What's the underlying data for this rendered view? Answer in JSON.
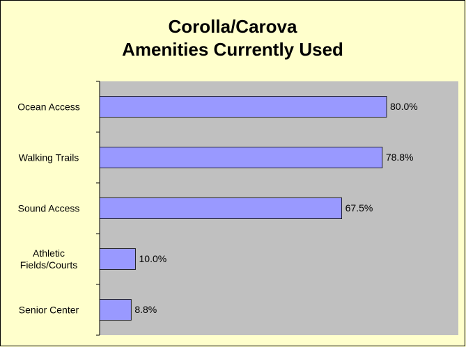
{
  "chart_data": {
    "type": "hbar",
    "title": [
      "Corolla/Carova",
      "Amenities Currently Used"
    ],
    "categories": [
      "Ocean Access",
      "Walking Trails",
      "Sound Access",
      "Athletic Fields/Courts",
      "Senior Center"
    ],
    "values": [
      80.0,
      78.8,
      67.5,
      10.0,
      8.8
    ],
    "value_labels": [
      "80.0%",
      "78.8%",
      "67.5%",
      "10.0%",
      "8.8%"
    ],
    "color": "#9999ff",
    "xlim": [
      0,
      100
    ]
  }
}
